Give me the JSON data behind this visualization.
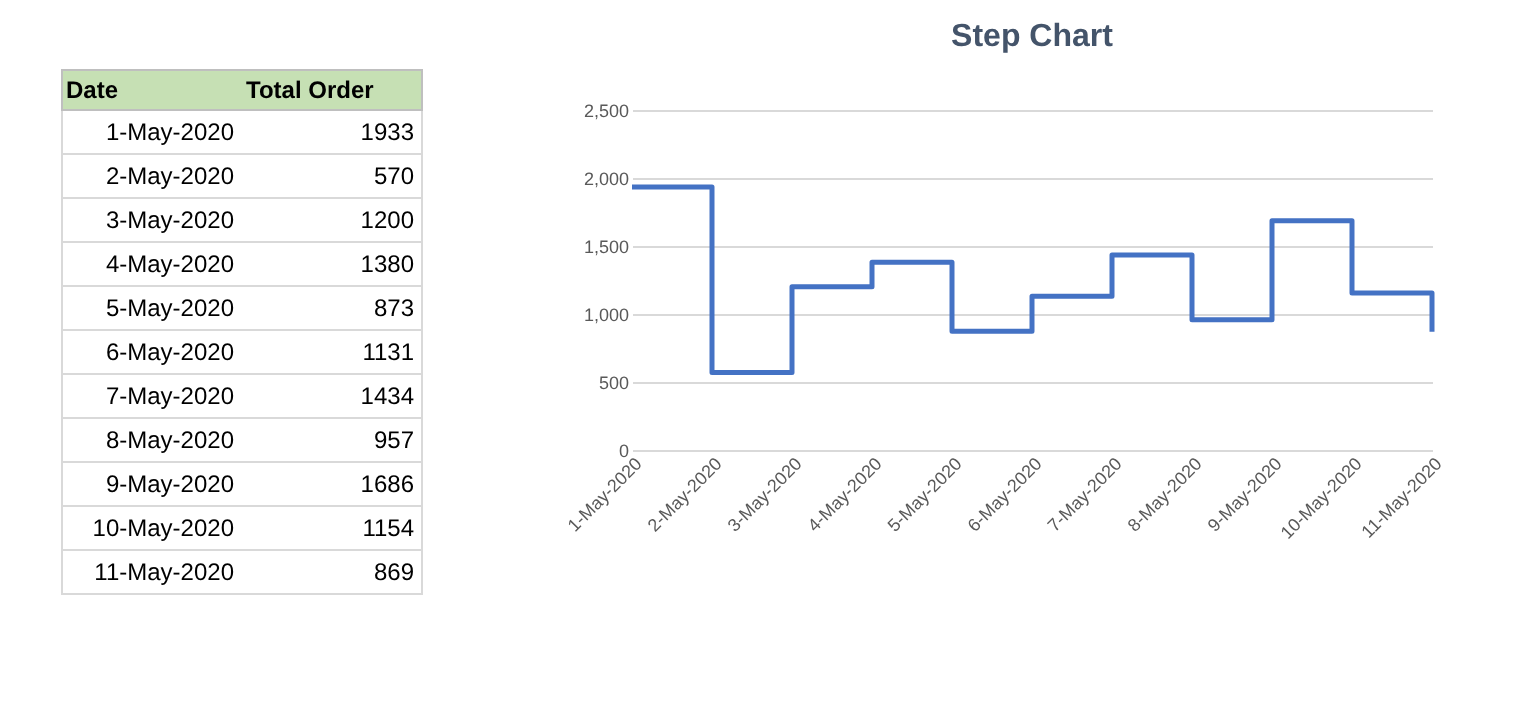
{
  "chart_data": [
    {
      "type": "other",
      "annotations": [
        "Date",
        "Total Order"
      ],
      "categories": [
        "1-May-2020",
        "2-May-2020",
        "3-May-2020",
        "4-May-2020",
        "5-May-2020",
        "6-May-2020",
        "7-May-2020",
        "8-May-2020",
        "9-May-2020",
        "10-May-2020",
        "11-May-2020"
      ],
      "values": [
        1933,
        570,
        1200,
        1380,
        873,
        1131,
        1434,
        957,
        1686,
        1154,
        869
      ],
      "data_labels": true
    },
    {
      "type": "step",
      "title": "Step Chart",
      "categories": [
        "1-May-2020",
        "2-May-2020",
        "3-May-2020",
        "4-May-2020",
        "5-May-2020",
        "6-May-2020",
        "7-May-2020",
        "8-May-2020",
        "9-May-2020",
        "10-May-2020",
        "11-May-2020"
      ],
      "series": [
        {
          "color": "#4472c4",
          "values": [
            1933,
            570,
            1200,
            1380,
            873,
            1131,
            1434,
            957,
            1686,
            1154,
            869
          ]
        }
      ],
      "ylim": [
        0,
        2500
      ],
      "yticks": [
        0,
        500,
        {
          "value": 1000,
          "label": "1,000"
        },
        {
          "value": 1500,
          "label": "1,500"
        },
        {
          "value": 2000,
          "label": "2,000"
        },
        {
          "value": 2500,
          "label": "2,500"
        }
      ],
      "grid": "y"
    }
  ]
}
